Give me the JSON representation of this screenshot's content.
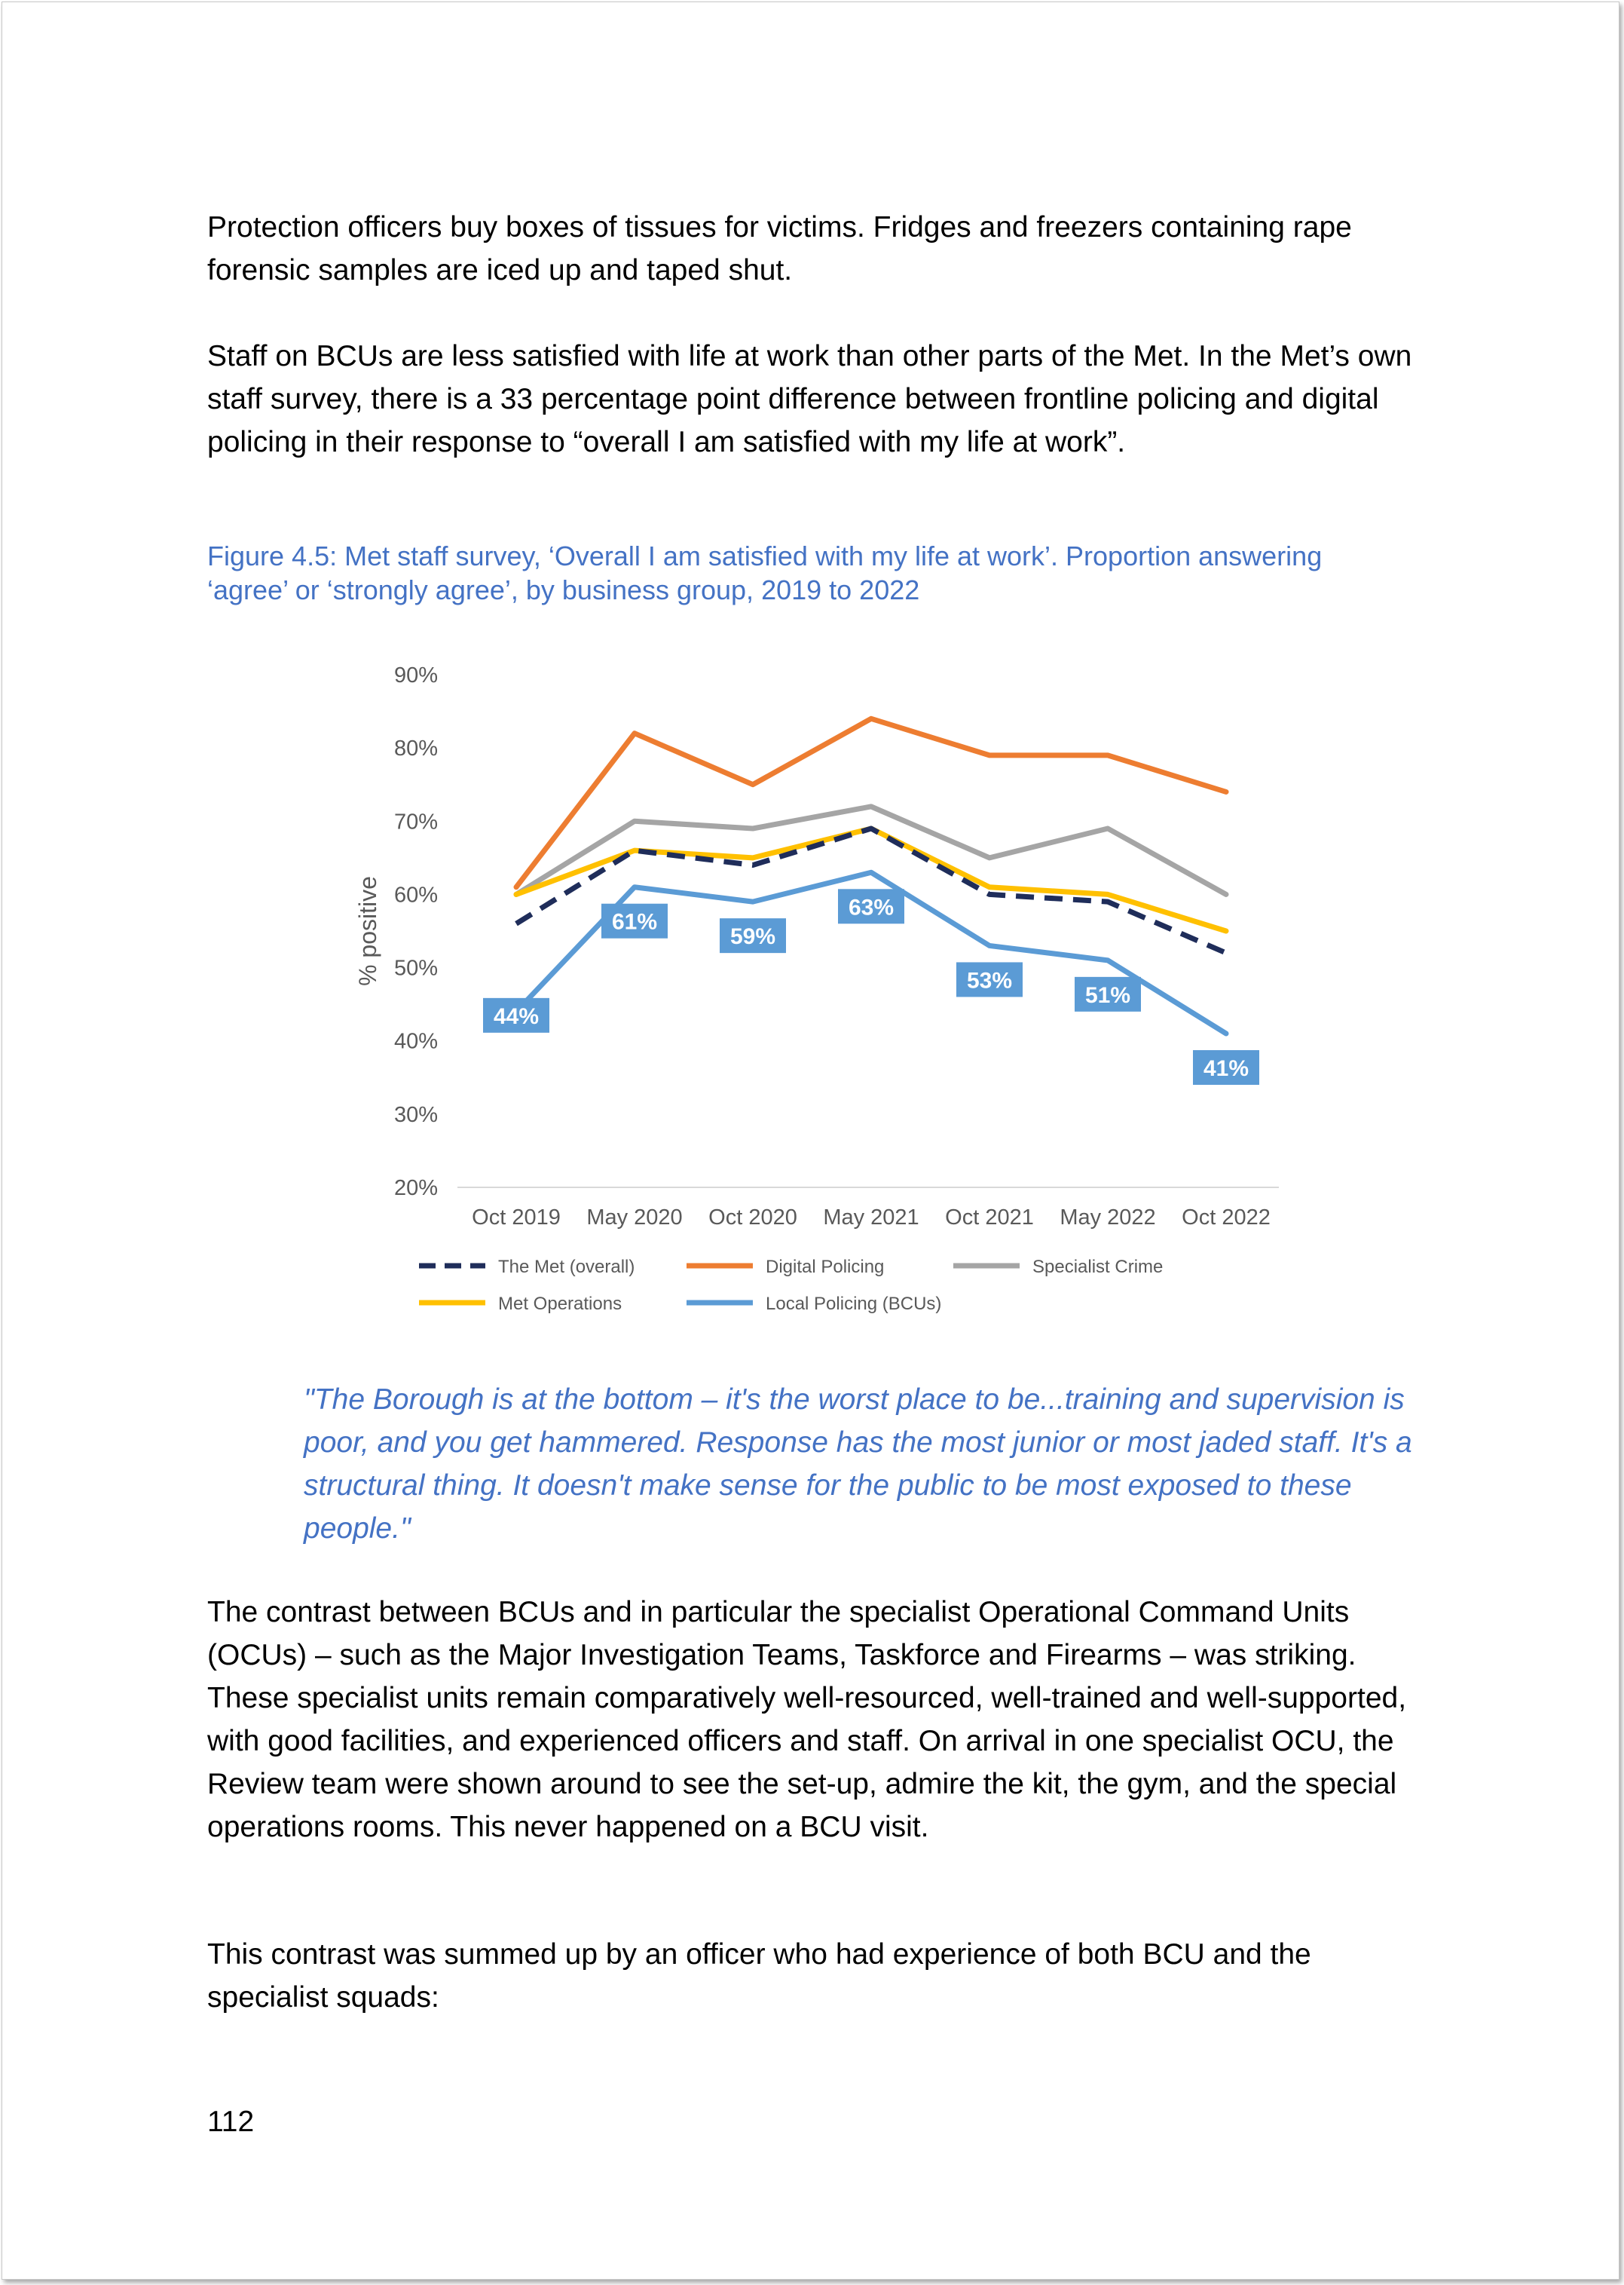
{
  "paragraphs": {
    "p1": "Protection officers buy boxes of tissues for victims. Fridges and freezers containing rape forensic samples are iced up and taped shut.",
    "p2": "Staff on BCUs are less satisfied with life at work than other parts of the Met. In the Met’s own staff survey, there is a 33 percentage point difference between frontline policing and digital policing in their response to “overall I am satisfied with my life at work”.",
    "p3": "The contrast between BCUs and in particular the specialist Operational Command Units (OCUs) – such as the Major Investigation Teams, Taskforce and Firearms – was striking. These specialist units remain comparatively well-resourced, well-trained and well-supported, with good facilities, and experienced officers and staff. On arrival in one specialist OCU, the Review team were shown around to see the set-up, admire the kit, the gym, and the special operations rooms. This never happened on a BCU visit.",
    "p4": "This contrast was summed up by an officer who had experience of both BCU and the specialist squads:"
  },
  "figure_caption": "Figure 4.5: Met staff survey, ‘Overall I am satisfied with my life at work’. Proportion answering ‘agree’ or ‘strongly agree’, by business group, 2019 to 2022",
  "quote": "\"The Borough is at the bottom – it's the worst place to be...training and supervision is poor, and you get hammered. Response has the most junior or most jaded staff. It's a structural thing. It doesn't make sense for the public to be most exposed to these people.\"",
  "page_number": "112",
  "chart_data": {
    "type": "line",
    "title": "",
    "xlabel": "",
    "ylabel": "% positive",
    "categories": [
      "Oct 2019",
      "May 2020",
      "Oct 2020",
      "May 2021",
      "Oct 2021",
      "May 2022",
      "Oct 2022"
    ],
    "ylim": [
      20,
      90
    ],
    "yticks": [
      20,
      30,
      40,
      50,
      60,
      70,
      80,
      90
    ],
    "ytick_labels": [
      "20%",
      "30%",
      "40%",
      "50%",
      "60%",
      "70%",
      "80%",
      "90%"
    ],
    "grid": false,
    "legend_position": "bottom",
    "series": [
      {
        "name": "The Met (overall)",
        "values": [
          56,
          66,
          64,
          69,
          60,
          59,
          52
        ],
        "color": "#1f2d5a",
        "dashed": true
      },
      {
        "name": "Digital Policing",
        "values": [
          61,
          82,
          75,
          84,
          79,
          79,
          74
        ],
        "color": "#ed7d31",
        "dashed": false
      },
      {
        "name": "Specialist Crime",
        "values": [
          60,
          70,
          69,
          72,
          65,
          69,
          60
        ],
        "color": "#a5a5a5",
        "dashed": false
      },
      {
        "name": "Met Operations",
        "values": [
          60,
          66,
          65,
          69,
          61,
          60,
          55
        ],
        "color": "#ffc000",
        "dashed": false
      },
      {
        "name": "Local Policing (BCUs)",
        "values": [
          44,
          61,
          59,
          63,
          53,
          51,
          41
        ],
        "color": "#5b9bd5",
        "dashed": false,
        "data_labels": [
          "44%",
          "61%",
          "59%",
          "63%",
          "53%",
          "51%",
          "41%"
        ]
      }
    ]
  }
}
